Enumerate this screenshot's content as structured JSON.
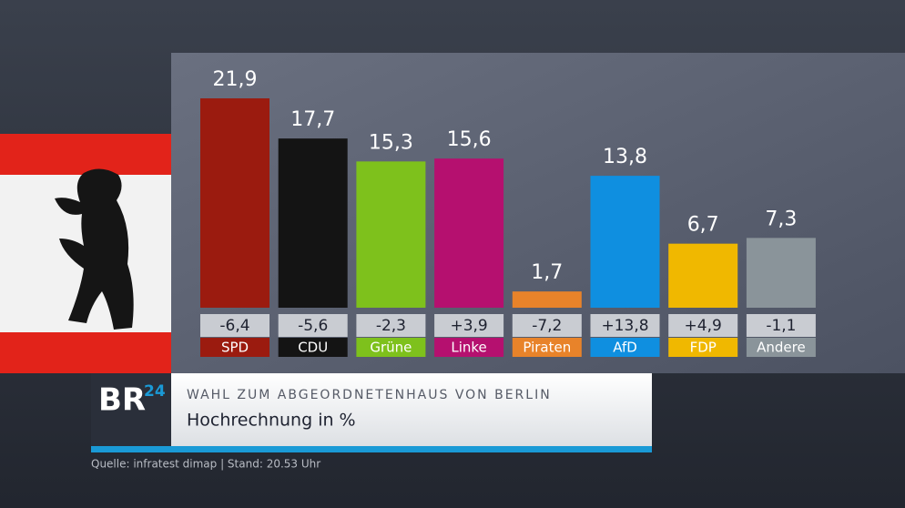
{
  "chart_data": {
    "type": "bar",
    "title": "WAHL ZUM ABGEORDNETENHAUS VON BERLIN",
    "subtitle": "Hochrechnung in %",
    "source": "Quelle: infratest dimap | Stand: 20.53 Uhr",
    "logo": [
      "BR",
      "24"
    ],
    "categories": [
      "SPD",
      "CDU",
      "Grüne",
      "Linke",
      "Piraten",
      "AfD",
      "FDP",
      "Andere"
    ],
    "values": [
      21.9,
      17.7,
      15.3,
      15.6,
      1.7,
      13.8,
      6.7,
      7.3
    ],
    "value_labels": [
      "21,9",
      "17,7",
      "15,3",
      "15,6",
      "1,7",
      "13,8",
      "6,7",
      "7,3"
    ],
    "changes": [
      "-6,4",
      "-5,6",
      "-2,3",
      "+3,9",
      "-7,2",
      "+13,8",
      "+4,9",
      "-1,1"
    ],
    "colors": [
      "#9b1b0f",
      "#141414",
      "#7ec11c",
      "#b5106f",
      "#e8832a",
      "#0f8fe0",
      "#f0b800",
      "#8a949a"
    ],
    "ylim": [
      0,
      25
    ]
  }
}
